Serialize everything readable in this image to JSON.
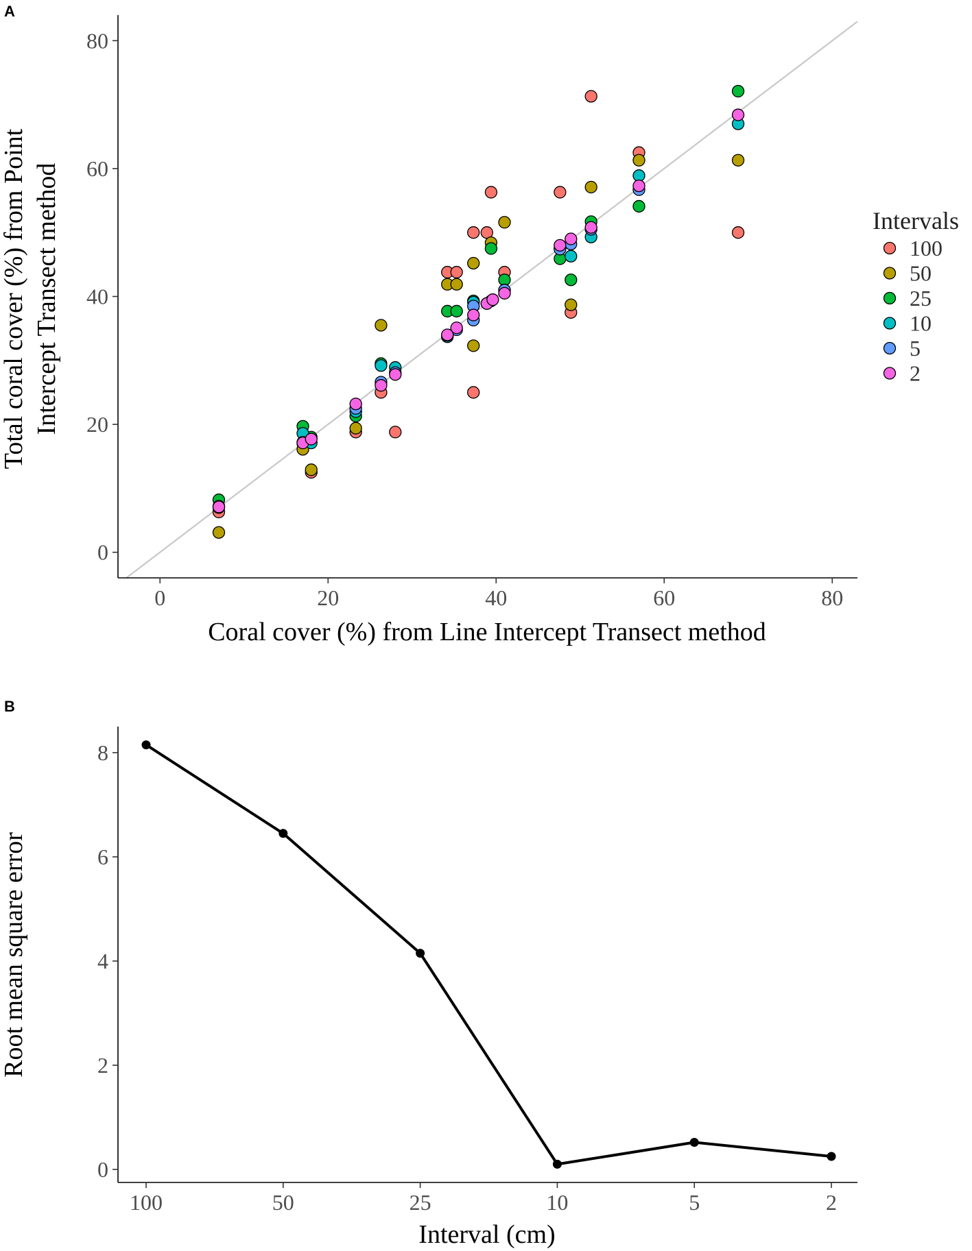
{
  "panels": [
    {
      "label": "A",
      "chart_data": {
        "type": "scatter",
        "xlabel": "Coral cover (%) from Line Intercept Transect method",
        "ylabel_lines": [
          "Total coral cover (%) from Point",
          "Intercept Transect method"
        ],
        "xlim": [
          -5,
          83
        ],
        "ylim": [
          -4,
          84
        ],
        "xticks": [
          0,
          20,
          40,
          60,
          80
        ],
        "yticks": [
          0,
          20,
          40,
          60,
          80
        ],
        "reference_line": "y = x",
        "legend": {
          "title": "Intervals",
          "position": "right"
        },
        "series": [
          {
            "name": "100",
            "color": "#f8766d",
            "points": [
              [
                7,
                6.3
              ],
              [
                17,
                17
              ],
              [
                18,
                12.5
              ],
              [
                23.3,
                18.8
              ],
              [
                26.3,
                25
              ],
              [
                28,
                18.8
              ],
              [
                34.2,
                43.8
              ],
              [
                35.3,
                43.8
              ],
              [
                37.3,
                50
              ],
              [
                37.3,
                25
              ],
              [
                38.9,
                50
              ],
              [
                39.4,
                56.3
              ],
              [
                41,
                43.8
              ],
              [
                47.6,
                56.3
              ],
              [
                48.9,
                37.5
              ],
              [
                51.3,
                71.3
              ],
              [
                57,
                62.5
              ],
              [
                68.8,
                50
              ]
            ]
          },
          {
            "name": "50",
            "color": "#b79f00",
            "points": [
              [
                7,
                3.1
              ],
              [
                17,
                16.1
              ],
              [
                18,
                12.9
              ],
              [
                23.3,
                19.4
              ],
              [
                26.3,
                35.5
              ],
              [
                34.2,
                41.9
              ],
              [
                35.3,
                41.9
              ],
              [
                37.3,
                45.2
              ],
              [
                37.3,
                32.3
              ],
              [
                39.4,
                48.4
              ],
              [
                41,
                51.6
              ],
              [
                48.9,
                38.7
              ],
              [
                51.3,
                57.1
              ],
              [
                57,
                61.3
              ],
              [
                68.8,
                61.3
              ]
            ]
          },
          {
            "name": "25",
            "color": "#00ba38",
            "points": [
              [
                7,
                8.2
              ],
              [
                17,
                19.7
              ],
              [
                18,
                18
              ],
              [
                23.3,
                21.3
              ],
              [
                26.3,
                29.5
              ],
              [
                34.2,
                37.7
              ],
              [
                35.3,
                37.7
              ],
              [
                37.3,
                39.3
              ],
              [
                39.4,
                47.5
              ],
              [
                41,
                42.6
              ],
              [
                47.6,
                45.9
              ],
              [
                48.9,
                42.6
              ],
              [
                51.3,
                51.7
              ],
              [
                57,
                54.1
              ],
              [
                68.8,
                72.1
              ]
            ]
          },
          {
            "name": "10",
            "color": "#00bfc4",
            "points": [
              [
                7,
                7.2
              ],
              [
                17,
                18.6
              ],
              [
                18,
                17.1
              ],
              [
                23.3,
                22
              ],
              [
                26.3,
                29.2
              ],
              [
                28,
                28.9
              ],
              [
                34.2,
                33.7
              ],
              [
                37.3,
                39.1
              ],
              [
                41,
                41
              ],
              [
                47.6,
                47.6
              ],
              [
                48.9,
                46.3
              ],
              [
                51.3,
                49.3
              ],
              [
                57,
                58.9
              ],
              [
                68.8,
                67
              ]
            ]
          },
          {
            "name": "5",
            "color": "#619cff",
            "points": [
              [
                7,
                7
              ],
              [
                17,
                17.2
              ],
              [
                23.3,
                22.5
              ],
              [
                26.3,
                26.6
              ],
              [
                28,
                28.1
              ],
              [
                34.2,
                33.9
              ],
              [
                35.3,
                34.8
              ],
              [
                37.3,
                36.3
              ],
              [
                37.3,
                38.5
              ],
              [
                38.9,
                38.9
              ],
              [
                39.4,
                39.3
              ],
              [
                41,
                41
              ],
              [
                47.6,
                47.4
              ],
              [
                48.9,
                48.2
              ],
              [
                51.3,
                50.5
              ],
              [
                57,
                56.7
              ]
            ]
          },
          {
            "name": "2",
            "color": "#f564e3",
            "points": [
              [
                7,
                7.1
              ],
              [
                17,
                17.1
              ],
              [
                18,
                17.7
              ],
              [
                23.3,
                23.2
              ],
              [
                26.3,
                26.1
              ],
              [
                28,
                27.8
              ],
              [
                34.2,
                34
              ],
              [
                35.3,
                35.1
              ],
              [
                37.3,
                37.1
              ],
              [
                38.9,
                38.9
              ],
              [
                39.6,
                39.5
              ],
              [
                41,
                40.5
              ],
              [
                47.6,
                48
              ],
              [
                48.9,
                49
              ],
              [
                51.3,
                50.8
              ],
              [
                57,
                57.3
              ],
              [
                68.8,
                68.4
              ]
            ]
          }
        ]
      }
    },
    {
      "label": "B",
      "chart_data": {
        "type": "line",
        "xlabel": "Interval (cm)",
        "ylabel": "Root mean square error",
        "categories": [
          "100",
          "50",
          "25",
          "10",
          "5",
          "2"
        ],
        "values": [
          8.15,
          6.45,
          4.15,
          0.1,
          0.52,
          0.25
        ],
        "ylim": [
          -0.25,
          8.5
        ],
        "yticks": [
          0,
          2,
          4,
          6,
          8
        ],
        "line_color": "#000000"
      }
    }
  ]
}
